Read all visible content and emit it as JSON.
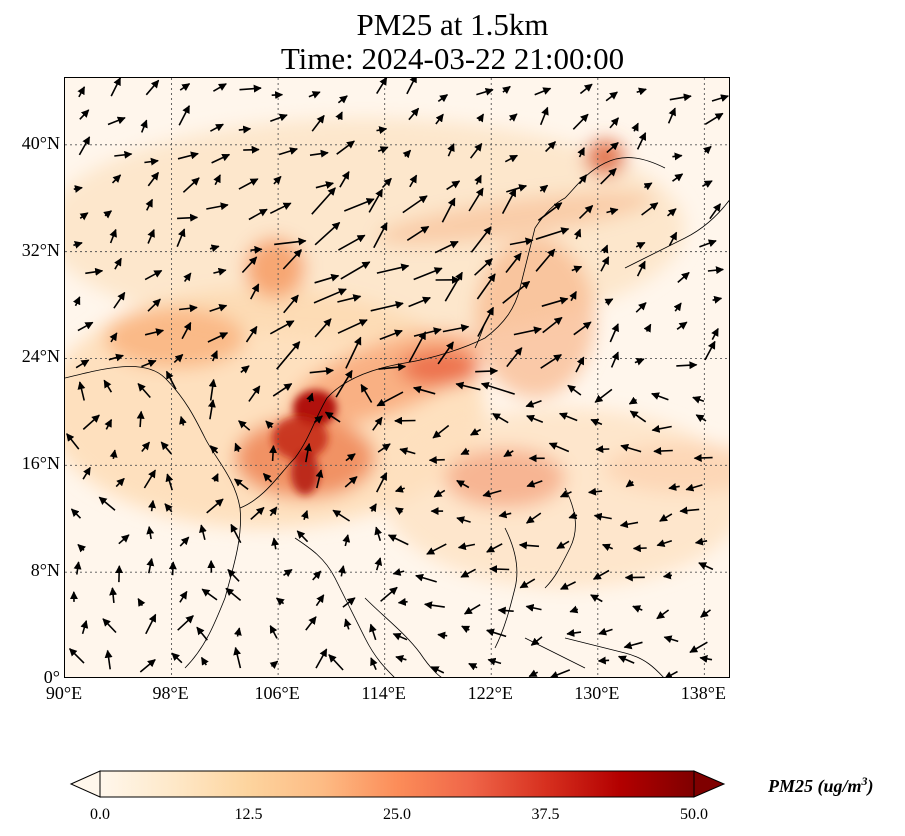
{
  "title": {
    "line1": "PM25 at 1.5km",
    "line2": "Time: 2024-03-22 21:00:00"
  },
  "map": {
    "lat_ticks": [
      "0°",
      "8°N",
      "16°N",
      "24°N",
      "32°N",
      "40°N"
    ],
    "lon_ticks": [
      "90°E",
      "98°E",
      "106°E",
      "114°E",
      "122°E",
      "130°E",
      "138°E"
    ],
    "extent": {
      "lon_min": 90,
      "lon_max": 140,
      "lat_min": 0,
      "lat_max": 45
    },
    "gridlines": true,
    "field": "PM25 concentration with wind vectors"
  },
  "colorbar": {
    "label": "PM25 (ug/m",
    "label_sup": "3",
    "label_close": ")",
    "ticks": [
      "0.0",
      "12.5",
      "25.0",
      "37.5",
      "50.0"
    ],
    "range": [
      0,
      50
    ],
    "colormap": "OrRd",
    "colors": [
      "#fff7ec",
      "#fee8c8",
      "#fdd49e",
      "#fdbb84",
      "#fc8d59",
      "#ef6548",
      "#d7301f",
      "#b30000",
      "#7f0000"
    ]
  }
}
